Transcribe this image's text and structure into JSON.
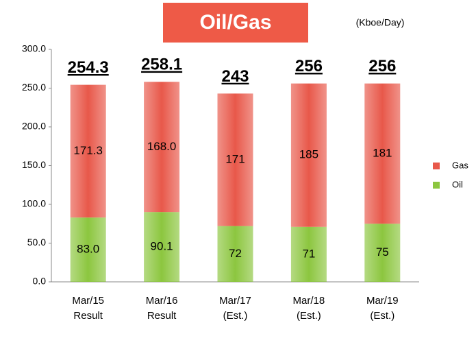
{
  "chart_data": {
    "type": "stacked_bar",
    "title": "Oil/Gas",
    "unit": "(Kboe/Day)",
    "categories": [
      [
        "Mar/15",
        "Result"
      ],
      [
        "Mar/16",
        "Result"
      ],
      [
        "Mar/17",
        "(Est.)"
      ],
      [
        "Mar/18",
        "(Est.)"
      ],
      [
        "Mar/19",
        "(Est.)"
      ]
    ],
    "series": [
      {
        "name": "Oil",
        "color": "#8cc63f",
        "values": [
          83.0,
          90.1,
          72,
          71,
          75
        ],
        "value_labels": [
          "83.0",
          "90.1",
          "72",
          "71",
          "75"
        ]
      },
      {
        "name": "Gas",
        "color": "#e8584a",
        "values": [
          171.3,
          168.0,
          171,
          185,
          181
        ],
        "value_labels": [
          "171.3",
          "168.0",
          "171",
          "185",
          "181"
        ]
      }
    ],
    "totals": [
      254.3,
      258.1,
      243,
      256,
      256
    ],
    "ylim": [
      0,
      300
    ],
    "yticks": [
      {
        "value": 0,
        "label": "0.0"
      },
      {
        "value": 50,
        "label": "50.0"
      },
      {
        "value": 100,
        "label": "100.0"
      },
      {
        "value": 150,
        "label": "150.0"
      },
      {
        "value": 200,
        "label": "200.0"
      },
      {
        "value": 250,
        "label": "250.0"
      },
      {
        "value": 300,
        "label": "300.0"
      }
    ],
    "legend": "right"
  }
}
